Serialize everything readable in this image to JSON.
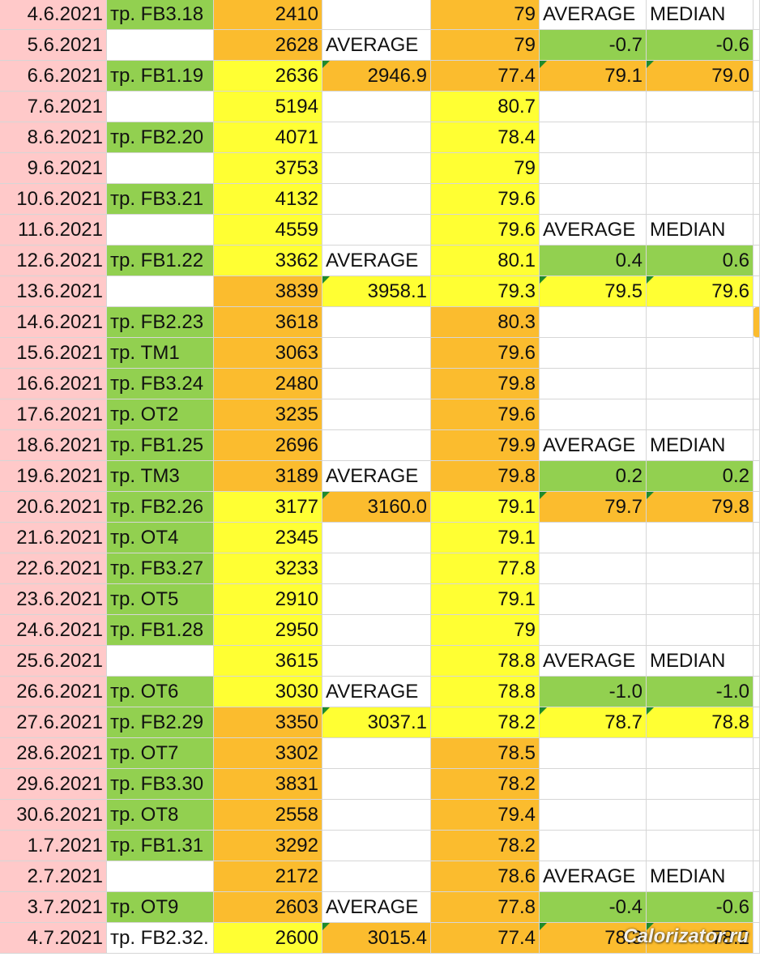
{
  "colors": {
    "pink": "#ffc9c9",
    "green": "#92d050",
    "orange": "#fbbc2e",
    "yellow": "#ffff33",
    "white": "#ffffff"
  },
  "rows": [
    {
      "date": "4.6.2021",
      "train": "тр. FB3.18",
      "kcal": "2410",
      "avg": "",
      "weight": "79",
      "s1": "AVERAGE",
      "s2": "MEDIAN",
      "trainColor": "green",
      "kcalColor": "orange",
      "avgColor": "white",
      "weightColor": "orange",
      "s1Color": "white",
      "s2Color": "white"
    },
    {
      "date": "5.6.2021",
      "train": "",
      "kcal": "2628",
      "avg": "AVERAGE",
      "weight": "79",
      "s1": "-0.7",
      "s2": "-0.6",
      "trainColor": "white",
      "kcalColor": "orange",
      "avgColor": "white",
      "weightColor": "orange",
      "s1Color": "green",
      "s2Color": "green"
    },
    {
      "date": "6.6.2021",
      "train": "тр. FB1.19",
      "kcal": "2636",
      "avg": "2946.9",
      "weight": "77.4",
      "s1": "79.1",
      "s2": "79.0",
      "trainColor": "green",
      "kcalColor": "yellow",
      "avgColor": "orange",
      "weightColor": "orange",
      "s1Color": "orange",
      "s2Color": "orange",
      "tri": true
    },
    {
      "date": "7.6.2021",
      "train": "",
      "kcal": "5194",
      "avg": "",
      "weight": "80.7",
      "s1": "",
      "s2": "",
      "trainColor": "white",
      "kcalColor": "yellow",
      "avgColor": "white",
      "weightColor": "yellow",
      "s1Color": "white",
      "s2Color": "white"
    },
    {
      "date": "8.6.2021",
      "train": "тр. FB2.20",
      "kcal": "4071",
      "avg": "",
      "weight": "78.4",
      "s1": "",
      "s2": "",
      "trainColor": "green",
      "kcalColor": "yellow",
      "avgColor": "white",
      "weightColor": "yellow",
      "s1Color": "white",
      "s2Color": "white"
    },
    {
      "date": "9.6.2021",
      "train": "",
      "kcal": "3753",
      "avg": "",
      "weight": "79",
      "s1": "",
      "s2": "",
      "trainColor": "white",
      "kcalColor": "yellow",
      "avgColor": "white",
      "weightColor": "yellow",
      "s1Color": "white",
      "s2Color": "white"
    },
    {
      "date": "10.6.2021",
      "train": "тр. FB3.21",
      "kcal": "4132",
      "avg": "",
      "weight": "79.6",
      "s1": "",
      "s2": "",
      "trainColor": "green",
      "kcalColor": "yellow",
      "avgColor": "white",
      "weightColor": "yellow",
      "s1Color": "white",
      "s2Color": "white"
    },
    {
      "date": "11.6.2021",
      "train": "",
      "kcal": "4559",
      "avg": "",
      "weight": "79.6",
      "s1": "AVERAGE",
      "s2": "MEDIAN",
      "trainColor": "white",
      "kcalColor": "yellow",
      "avgColor": "white",
      "weightColor": "yellow",
      "s1Color": "white",
      "s2Color": "white"
    },
    {
      "date": "12.6.2021",
      "train": "тр. FB1.22",
      "kcal": "3362",
      "avg": "AVERAGE",
      "weight": "80.1",
      "s1": "0.4",
      "s2": "0.6",
      "trainColor": "green",
      "kcalColor": "yellow",
      "avgColor": "white",
      "weightColor": "yellow",
      "s1Color": "green",
      "s2Color": "green"
    },
    {
      "date": "13.6.2021",
      "train": "",
      "kcal": "3839",
      "avg": "3958.1",
      "weight": "79.3",
      "s1": "79.5",
      "s2": "79.6",
      "trainColor": "white",
      "kcalColor": "orange",
      "avgColor": "yellow",
      "weightColor": "yellow",
      "s1Color": "yellow",
      "s2Color": "yellow",
      "tri": true
    },
    {
      "date": "14.6.2021",
      "train": "тр. FB2.23",
      "kcal": "3618",
      "avg": "",
      "weight": "80.3",
      "s1": "",
      "s2": "",
      "trainColor": "green",
      "kcalColor": "orange",
      "avgColor": "white",
      "weightColor": "orange",
      "s1Color": "white",
      "s2Color": "white",
      "edge": true
    },
    {
      "date": "15.6.2021",
      "train": "тр. TM1",
      "kcal": "3063",
      "avg": "",
      "weight": "79.6",
      "s1": "",
      "s2": "",
      "trainColor": "green",
      "kcalColor": "orange",
      "avgColor": "white",
      "weightColor": "orange",
      "s1Color": "white",
      "s2Color": "white"
    },
    {
      "date": "16.6.2021",
      "train": "тр. FB3.24",
      "kcal": "2480",
      "avg": "",
      "weight": "79.8",
      "s1": "",
      "s2": "",
      "trainColor": "green",
      "kcalColor": "orange",
      "avgColor": "white",
      "weightColor": "orange",
      "s1Color": "white",
      "s2Color": "white"
    },
    {
      "date": "17.6.2021",
      "train": "тр. OT2",
      "kcal": "3235",
      "avg": "",
      "weight": "79.6",
      "s1": "",
      "s2": "",
      "trainColor": "green",
      "kcalColor": "orange",
      "avgColor": "white",
      "weightColor": "orange",
      "s1Color": "white",
      "s2Color": "white"
    },
    {
      "date": "18.6.2021",
      "train": "тр. FB1.25",
      "kcal": "2696",
      "avg": "",
      "weight": "79.9",
      "s1": "AVERAGE",
      "s2": "MEDIAN",
      "trainColor": "green",
      "kcalColor": "orange",
      "avgColor": "white",
      "weightColor": "orange",
      "s1Color": "white",
      "s2Color": "white"
    },
    {
      "date": "19.6.2021",
      "train": "тр. TM3",
      "kcal": "3189",
      "avg": "AVERAGE",
      "weight": "79.8",
      "s1": "0.2",
      "s2": "0.2",
      "trainColor": "green",
      "kcalColor": "orange",
      "avgColor": "white",
      "weightColor": "orange",
      "s1Color": "green",
      "s2Color": "green"
    },
    {
      "date": "20.6.2021",
      "train": "тр. FB2.26",
      "kcal": "3177",
      "avg": "3160.0",
      "weight": "79.1",
      "s1": "79.7",
      "s2": "79.8",
      "trainColor": "green",
      "kcalColor": "yellow",
      "avgColor": "orange",
      "weightColor": "yellow",
      "s1Color": "orange",
      "s2Color": "orange",
      "tri": true
    },
    {
      "date": "21.6.2021",
      "train": "тр. OT4",
      "kcal": "2345",
      "avg": "",
      "weight": "79.1",
      "s1": "",
      "s2": "",
      "trainColor": "green",
      "kcalColor": "yellow",
      "avgColor": "white",
      "weightColor": "yellow",
      "s1Color": "white",
      "s2Color": "white"
    },
    {
      "date": "22.6.2021",
      "train": "тр. FB3.27",
      "kcal": "3233",
      "avg": "",
      "weight": "77.8",
      "s1": "",
      "s2": "",
      "trainColor": "green",
      "kcalColor": "yellow",
      "avgColor": "white",
      "weightColor": "yellow",
      "s1Color": "white",
      "s2Color": "white"
    },
    {
      "date": "23.6.2021",
      "train": "тр. OT5",
      "kcal": "2910",
      "avg": "",
      "weight": "79.1",
      "s1": "",
      "s2": "",
      "trainColor": "green",
      "kcalColor": "yellow",
      "avgColor": "white",
      "weightColor": "yellow",
      "s1Color": "white",
      "s2Color": "white"
    },
    {
      "date": "24.6.2021",
      "train": "тр. FB1.28",
      "kcal": "2950",
      "avg": "",
      "weight": "79",
      "s1": "",
      "s2": "",
      "trainColor": "green",
      "kcalColor": "yellow",
      "avgColor": "white",
      "weightColor": "yellow",
      "s1Color": "white",
      "s2Color": "white"
    },
    {
      "date": "25.6.2021",
      "train": "",
      "kcal": "3615",
      "avg": "",
      "weight": "78.8",
      "s1": "AVERAGE",
      "s2": "MEDIAN",
      "trainColor": "white",
      "kcalColor": "yellow",
      "avgColor": "white",
      "weightColor": "yellow",
      "s1Color": "white",
      "s2Color": "white"
    },
    {
      "date": "26.6.2021",
      "train": "тр. OT6",
      "kcal": "3030",
      "avg": "AVERAGE",
      "weight": "78.8",
      "s1": "-1.0",
      "s2": "-1.0",
      "trainColor": "green",
      "kcalColor": "yellow",
      "avgColor": "white",
      "weightColor": "yellow",
      "s1Color": "green",
      "s2Color": "green"
    },
    {
      "date": "27.6.2021",
      "train": "тр. FB2.29",
      "kcal": "3350",
      "avg": "3037.1",
      "weight": "78.2",
      "s1": "78.7",
      "s2": "78.8",
      "trainColor": "green",
      "kcalColor": "orange",
      "avgColor": "yellow",
      "weightColor": "yellow",
      "s1Color": "yellow",
      "s2Color": "yellow",
      "tri": true
    },
    {
      "date": "28.6.2021",
      "train": "тр. OT7",
      "kcal": "3302",
      "avg": "",
      "weight": "78.5",
      "s1": "",
      "s2": "",
      "trainColor": "green",
      "kcalColor": "orange",
      "avgColor": "white",
      "weightColor": "orange",
      "s1Color": "white",
      "s2Color": "white"
    },
    {
      "date": "29.6.2021",
      "train": "тр. FB3.30",
      "kcal": "3831",
      "avg": "",
      "weight": "78.2",
      "s1": "",
      "s2": "",
      "trainColor": "green",
      "kcalColor": "orange",
      "avgColor": "white",
      "weightColor": "orange",
      "s1Color": "white",
      "s2Color": "white"
    },
    {
      "date": "30.6.2021",
      "train": "тр. OT8",
      "kcal": "2558",
      "avg": "",
      "weight": "79.4",
      "s1": "",
      "s2": "",
      "trainColor": "green",
      "kcalColor": "orange",
      "avgColor": "white",
      "weightColor": "orange",
      "s1Color": "white",
      "s2Color": "white"
    },
    {
      "date": "1.7.2021",
      "train": "тр. FB1.31",
      "kcal": "3292",
      "avg": "",
      "weight": "78.2",
      "s1": "",
      "s2": "",
      "trainColor": "green",
      "kcalColor": "orange",
      "avgColor": "white",
      "weightColor": "orange",
      "s1Color": "white",
      "s2Color": "white"
    },
    {
      "date": "2.7.2021",
      "train": "",
      "kcal": "2172",
      "avg": "",
      "weight": "78.6",
      "s1": "AVERAGE",
      "s2": "MEDIAN",
      "trainColor": "white",
      "kcalColor": "orange",
      "avgColor": "white",
      "weightColor": "orange",
      "s1Color": "white",
      "s2Color": "white"
    },
    {
      "date": "3.7.2021",
      "train": "тр. OT9",
      "kcal": "2603",
      "avg": "AVERAGE",
      "weight": "77.8",
      "s1": "-0.4",
      "s2": "-0.6",
      "trainColor": "green",
      "kcalColor": "orange",
      "avgColor": "white",
      "weightColor": "orange",
      "s1Color": "green",
      "s2Color": "green"
    },
    {
      "date": "4.7.2021",
      "train": "тр. FB2.32.",
      "kcal": "2600",
      "avg": "3015.4",
      "weight": "77.4",
      "s1": "78.3",
      "s2": "78.2",
      "trainColor": "white",
      "kcalColor": "yellow",
      "avgColor": "orange",
      "weightColor": "orange",
      "s1Color": "orange",
      "s2Color": "orange",
      "tri": true
    }
  ],
  "watermark": "Calorizator.ru"
}
